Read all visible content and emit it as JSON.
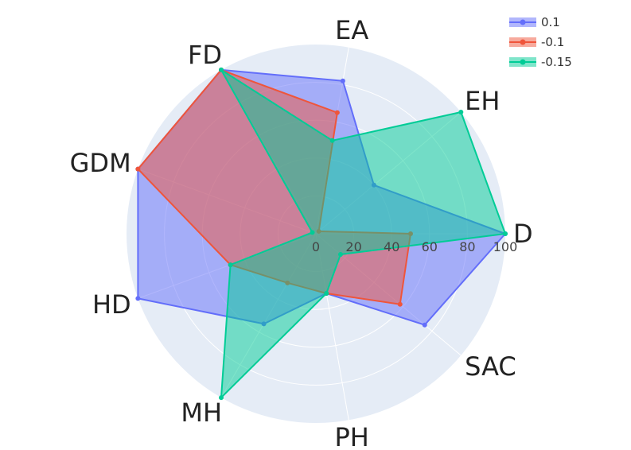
{
  "chart_data": {
    "type": "radar",
    "axes": [
      "D",
      "SAC",
      "PH",
      "MH",
      "HD",
      "GDM",
      "FD",
      "EA",
      "EH"
    ],
    "radial_range": [
      0,
      100
    ],
    "radial_ticks": [
      "0",
      "20",
      "40",
      "60",
      "80",
      "100"
    ],
    "grid": true,
    "legend_position": "top-right",
    "series": [
      {
        "name": "0.1",
        "color": "#636efa",
        "values": [
          100,
          75,
          32,
          55,
          100,
          100,
          100,
          82,
          40
        ]
      },
      {
        "name": "-0.1",
        "color": "#ef553b",
        "values": [
          50,
          58,
          32,
          30,
          48,
          100,
          100,
          65,
          2
        ]
      },
      {
        "name": "-0.15",
        "color": "#00cc96",
        "values": [
          100,
          17,
          32,
          100,
          48,
          2,
          100,
          50,
          100
        ]
      }
    ]
  }
}
